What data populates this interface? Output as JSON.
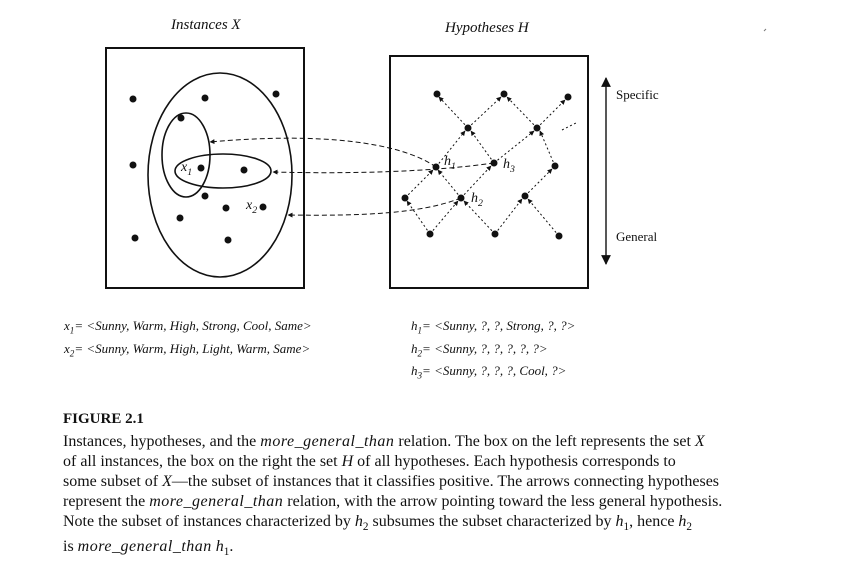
{
  "panels": {
    "instances_title": "Instances X",
    "hypotheses_title": "Hypotheses H"
  },
  "axis": {
    "specific_label": "Specific",
    "general_label": "General"
  },
  "points": {
    "x1": "x",
    "x1_sub": "1",
    "x2": "x",
    "x2_sub": "2",
    "h1": "h",
    "h1_sub": "1",
    "h2": "h",
    "h2_sub": "2",
    "h3": "h",
    "h3_sub": "3"
  },
  "definitions": {
    "x1_lhs": "x",
    "x1_sub": "1",
    "x1_rhs": "= <Sunny, Warm, High, Strong, Cool, Same>",
    "x2_lhs": "x",
    "x2_sub": "2",
    "x2_rhs": "= <Sunny, Warm, High, Light, Warm, Same>",
    "h1_lhs": "h",
    "h1_sub": "1",
    "h1_rhs": "= <Sunny, ?, ?, Strong, ?, ?>",
    "h2_lhs": "h",
    "h2_sub": "2",
    "h2_rhs": "= <Sunny, ?, ?, ?, ?, ?>",
    "h3_lhs": "h",
    "h3_sub": "3",
    "h3_rhs": "= <Sunny, ?, ?, ?, Cool, ?>"
  },
  "figure": {
    "label": "FIGURE 2.1",
    "caption": {
      "l1a": "Instances, hypotheses, and the ",
      "l1b": "more_general_than",
      "l1c": " relation. The box on the left represents the set ",
      "l1d": "X",
      "l2a": "of all instances, the box on the right the set ",
      "l2b": "H",
      "l2c": " of all hypotheses. Each hypothesis corresponds to",
      "l3a": "some subset of ",
      "l3b": "X",
      "l3c": "—the subset of instances that it classifies positive. The arrows connecting hypotheses",
      "l4a": "represent the ",
      "l4b": "more_general_than",
      "l4c": " relation, with the arrow pointing toward the less general hypothesis.",
      "l5a": "Note the subset of instances characterized by ",
      "l5b": "h",
      "l5c": "2",
      "l5d": " subsumes the subset characterized by ",
      "l5e": "h",
      "l5f": "1",
      "l5g": ", hence ",
      "l5h": "h",
      "l5i": "2",
      "l6a": "is ",
      "l6b": "more_general_than",
      "l6c": " ",
      "l6d": "h",
      "l6e": "1",
      "l6f": "."
    }
  }
}
